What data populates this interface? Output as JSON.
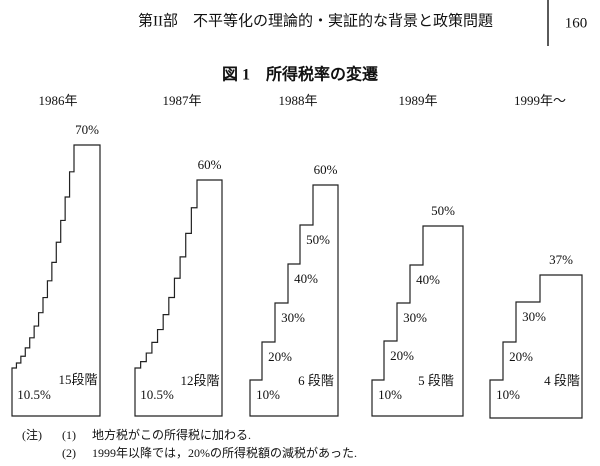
{
  "header": {
    "section": "第II部　不平等化の理論的・実証的な背景と政策問題",
    "page": "160"
  },
  "figure": {
    "title": "図 1　所得税率の変遷",
    "panels": [
      {
        "year": "1986年",
        "rates": [
          "10.5%",
          "70%"
        ],
        "brackets": "15段階"
      },
      {
        "year": "1987年",
        "rates": [
          "10.5%",
          "60%"
        ],
        "brackets": "12段階"
      },
      {
        "year": "1988年",
        "rates": [
          "10%",
          "20%",
          "30%",
          "40%",
          "50%",
          "60%"
        ],
        "brackets": "6 段階"
      },
      {
        "year": "1989年",
        "rates": [
          "10%",
          "20%",
          "30%",
          "40%",
          "50%"
        ],
        "brackets": "5 段階"
      },
      {
        "year": "1999年～",
        "rates": [
          "10%",
          "20%",
          "30%",
          "37%"
        ],
        "brackets": "4 段階"
      }
    ]
  },
  "notes": {
    "label": "(注)",
    "items": [
      {
        "number": "(1)",
        "text": "地方税がこの所得税に加わる."
      },
      {
        "number": "(2)",
        "text": "1999年以降では，20%の所得税額の減税があった."
      }
    ]
  }
}
